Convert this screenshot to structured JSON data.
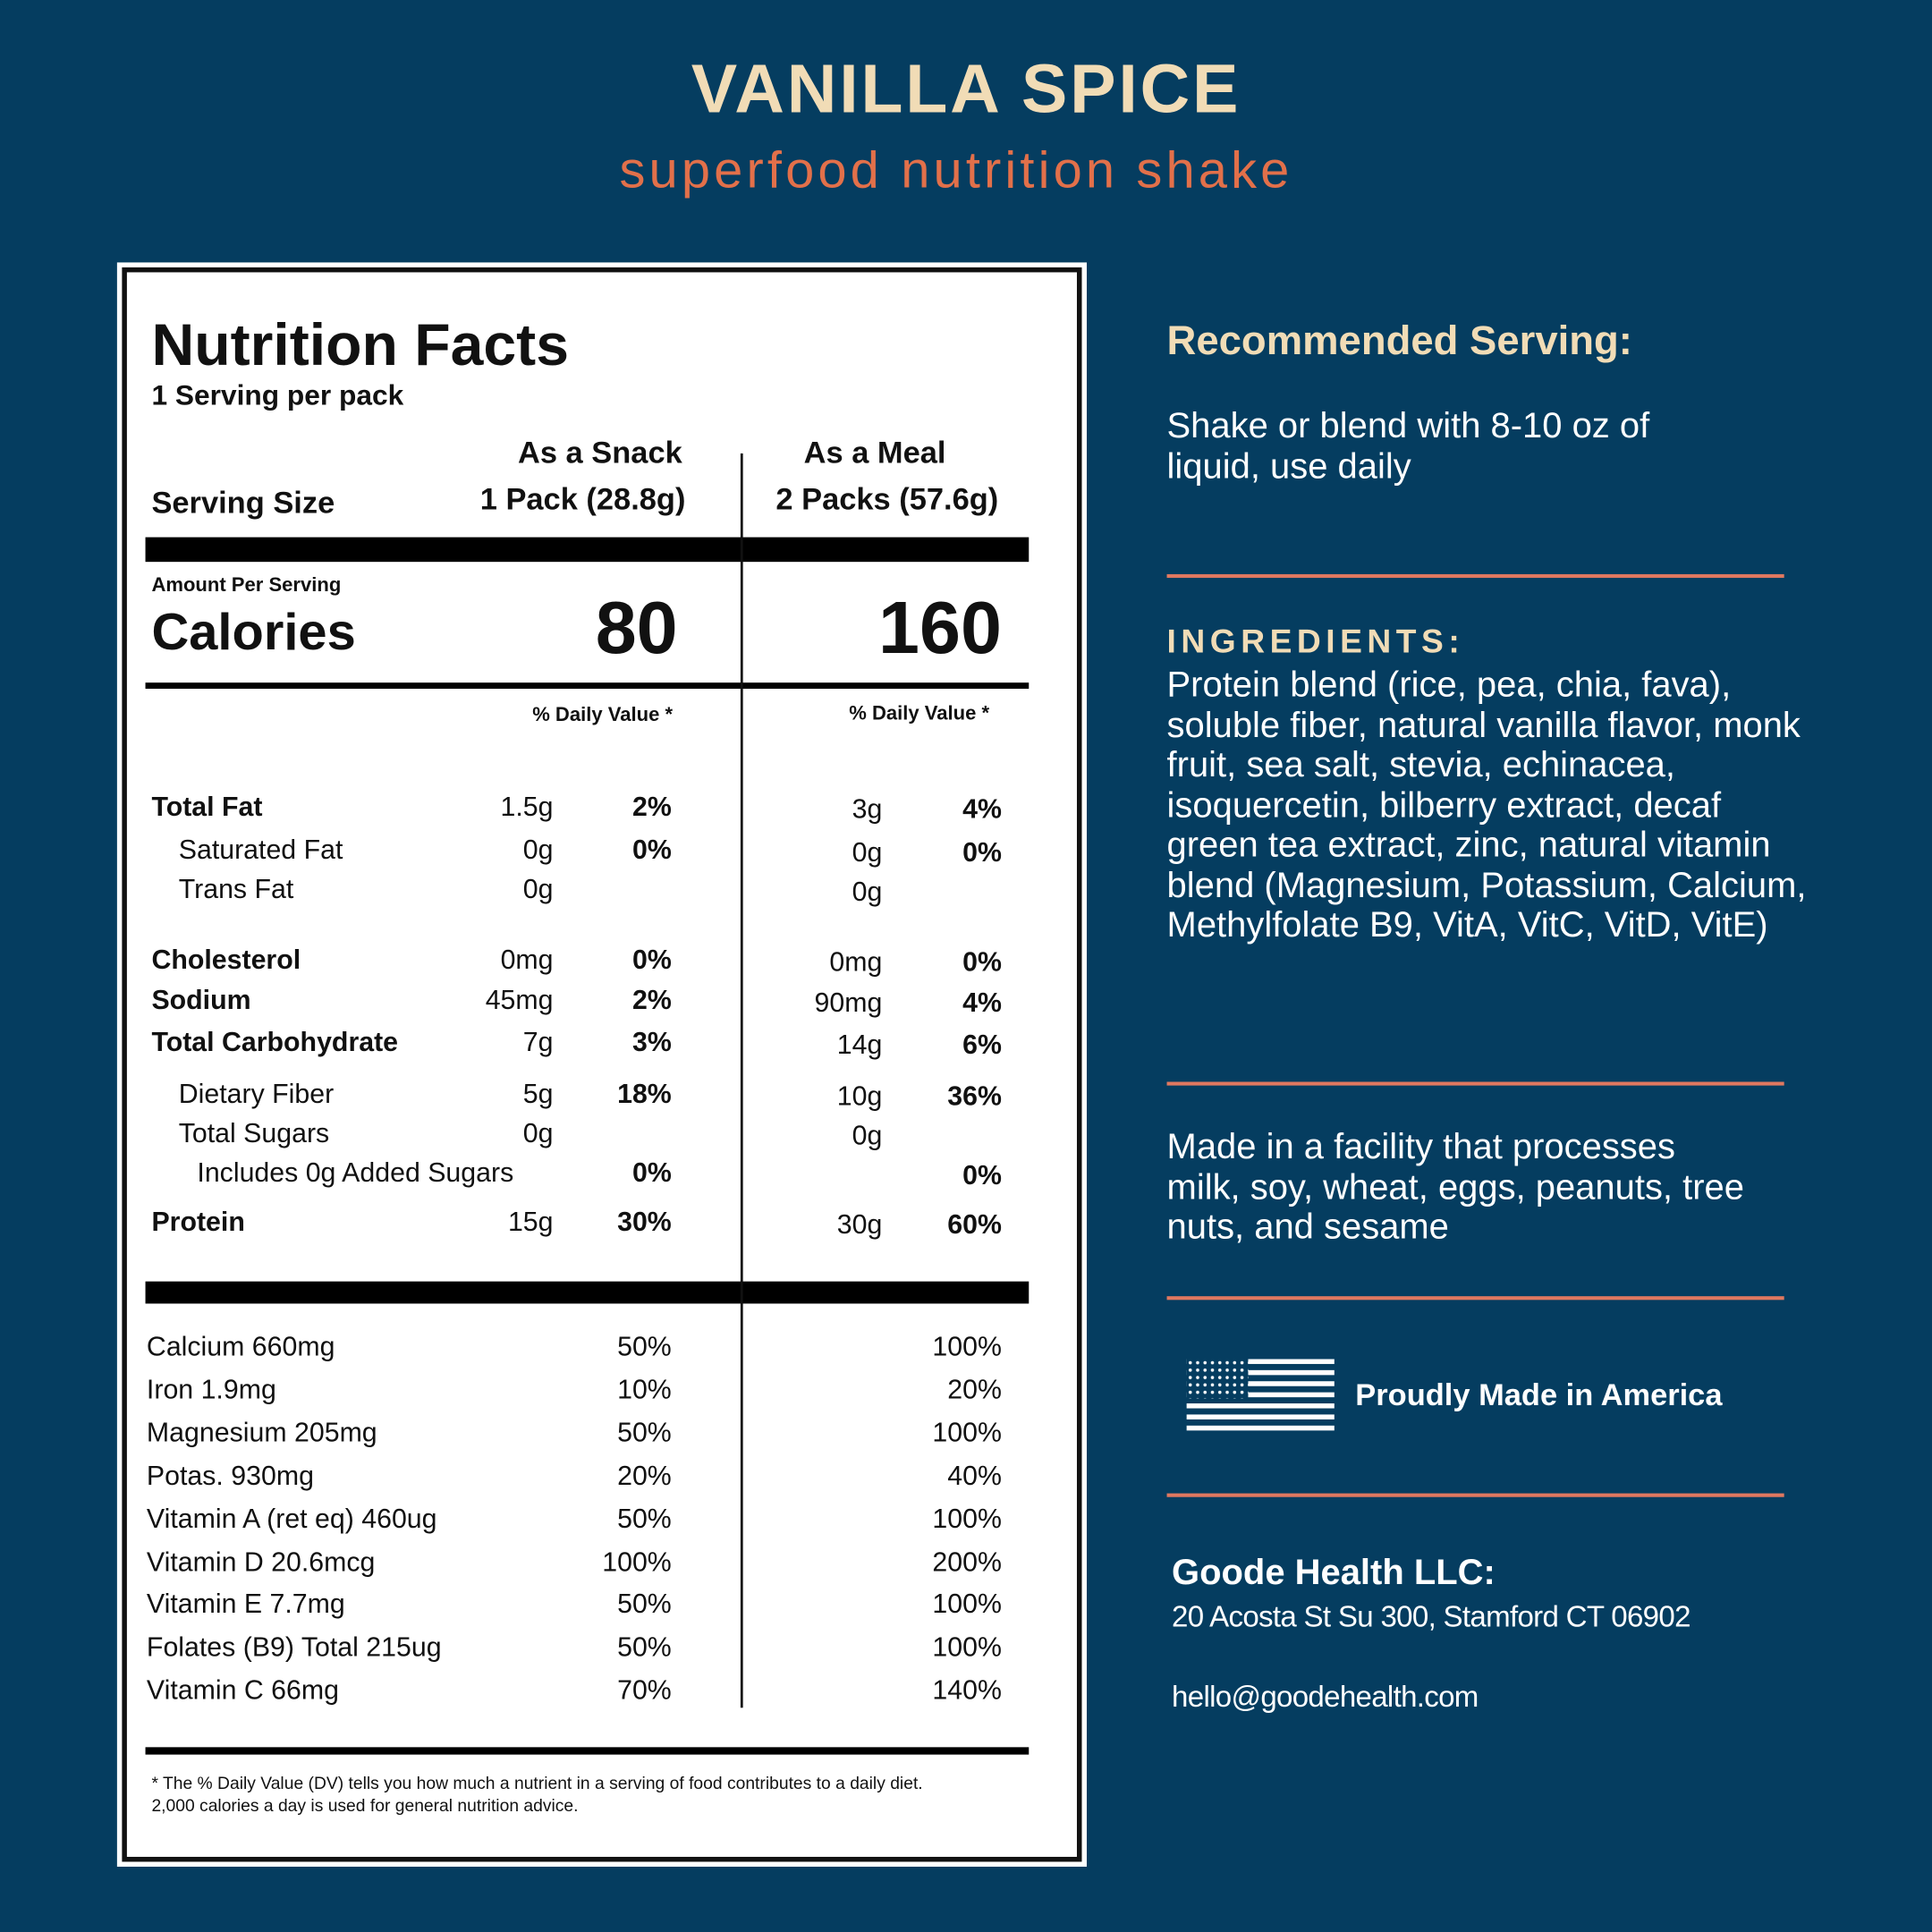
{
  "header": {
    "title": "VANILLA SPICE",
    "subtitle": "superfood nutrition shake"
  },
  "label": {
    "title": "Nutrition Facts",
    "servings": "1 Serving per pack",
    "serving_size_label": "Serving Size",
    "columns": [
      {
        "heading": "As a Snack",
        "size": "1 Pack (28.8g)",
        "calories": "80"
      },
      {
        "heading": "As a Meal",
        "size": "2 Packs (57.6g)",
        "calories": "160"
      }
    ],
    "amount_per_serving": "Amount Per Serving",
    "calories_label": "Calories",
    "dv_header": "% Daily Value *",
    "nutrients": [
      {
        "name": "Total Fat",
        "snack_amount": "1.5g",
        "snack_dv": "2%",
        "meal_amount": "3g",
        "meal_dv": "4%"
      },
      {
        "name": "Saturated Fat",
        "snack_amount": "0g",
        "snack_dv": "0%",
        "meal_amount": "0g",
        "meal_dv": "0%"
      },
      {
        "name": "Trans Fat",
        "snack_amount": "0g",
        "snack_dv": null,
        "meal_amount": "0g",
        "meal_dv": null
      },
      {
        "name": "Cholesterol",
        "snack_amount": "0mg",
        "snack_dv": "0%",
        "meal_amount": "0mg",
        "meal_dv": "0%"
      },
      {
        "name": "Sodium",
        "snack_amount": "45mg",
        "snack_dv": "2%",
        "meal_amount": "90mg",
        "meal_dv": "4%"
      },
      {
        "name": "Total Carbohydrate",
        "snack_amount": "7g",
        "snack_dv": "3%",
        "meal_amount": "14g",
        "meal_dv": "6%"
      },
      {
        "name": "Dietary Fiber",
        "snack_amount": "5g",
        "snack_dv": "18%",
        "meal_amount": "10g",
        "meal_dv": "36%"
      },
      {
        "name": "Total Sugars",
        "snack_amount": "0g",
        "snack_dv": null,
        "meal_amount": "0g",
        "meal_dv": null
      },
      {
        "name": "Includes 0g Added Sugars",
        "snack_amount": null,
        "snack_dv": "0%",
        "meal_amount": null,
        "meal_dv": "0%"
      },
      {
        "name": "Protein",
        "snack_amount": "15g",
        "snack_dv": "30%",
        "meal_amount": "30g",
        "meal_dv": "60%"
      }
    ],
    "minerals": [
      {
        "name": "Calcium 660mg",
        "snack_dv": "50%",
        "meal_dv": "100%"
      },
      {
        "name": "Iron 1.9mg",
        "snack_dv": "10%",
        "meal_dv": "20%"
      },
      {
        "name": "Magnesium 205mg",
        "snack_dv": "50%",
        "meal_dv": "100%"
      },
      {
        "name": "Potas. 930mg",
        "snack_dv": "20%",
        "meal_dv": "40%"
      },
      {
        "name": "Vitamin A (ret eq) 460ug",
        "snack_dv": "50%",
        "meal_dv": "100%"
      },
      {
        "name": "Vitamin D 20.6mcg",
        "snack_dv": "100%",
        "meal_dv": "200%"
      },
      {
        "name": "Vitamin E 7.7mg",
        "snack_dv": "50%",
        "meal_dv": "100%"
      },
      {
        "name": "Folates (B9) Total 215ug",
        "snack_dv": "50%",
        "meal_dv": "100%"
      },
      {
        "name": "Vitamin C 66mg",
        "snack_dv": "70%",
        "meal_dv": "140%"
      }
    ],
    "footnote": [
      "* The % Daily Value (DV) tells you how much a nutrient in a serving of food contributes to a daily diet.",
      "2,000 calories a day is used for general nutrition advice."
    ]
  },
  "info": {
    "recommended_heading": "Recommended Serving:",
    "recommended_text": "Shake or blend with 8-10 oz of liquid, use daily",
    "ingredients_heading": "INGREDIENTS:",
    "ingredients_text": "Protein blend (rice, pea, chia, fava), soluble fiber, natural vanilla flavor, monk fruit, sea salt, stevia, echinacea, isoquercetin, bilberry extract, decaf green tea extract, zinc, natural vitamin blend (Magnesium, Potassium, Calcium, Methylfolate B9, VitA, VitC, VitD, VitE)",
    "allergen_text": "Made in a facility that processes milk, soy, wheat, eggs, peanuts, tree nuts, and sesame",
    "made_in": "Proudly Made in America",
    "company": "Goode Health LLC:",
    "address": "20 Acosta St Su 300, Stamford CT 06902",
    "email": "hello@goodehealth.com"
  }
}
